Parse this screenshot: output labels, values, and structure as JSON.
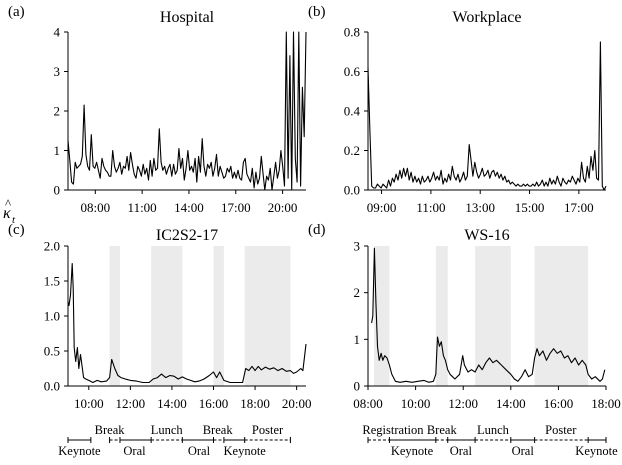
{
  "figure": {
    "ylabel_kappa": "κ",
    "ylabel_hat": "^",
    "ylabel_sub": "t"
  },
  "chart_data": [
    {
      "id": "a",
      "type": "line",
      "panel_label": "(a)",
      "title": "Hospital",
      "x_start": 6.25,
      "x_end": 21.5,
      "ylim": [
        0,
        4
      ],
      "yticks": [
        0,
        1,
        2,
        3,
        4
      ],
      "yticklabels": [
        "0",
        "1",
        "2",
        "3",
        "4"
      ],
      "xticks": [
        8,
        11,
        14,
        17,
        20
      ],
      "xticklabels": [
        "08:00",
        "11:00",
        "14:00",
        "17:00",
        "20:00"
      ],
      "values": [
        1.25,
        0.75,
        0.2,
        0.15,
        0.7,
        0.55,
        0.6,
        0.65,
        0.85,
        2.15,
        0.9,
        0.6,
        0.5,
        1.4,
        0.6,
        0.55,
        0.7,
        0.5,
        0.3,
        0.8,
        0.6,
        0.5,
        0.45,
        0.35,
        0.35,
        1.0,
        0.6,
        0.45,
        0.55,
        0.7,
        0.4,
        0.6,
        0.55,
        0.85,
        0.5,
        0.95,
        0.65,
        0.4,
        0.3,
        0.6,
        0.5,
        0.35,
        0.65,
        0.4,
        0.55,
        0.25,
        0.75,
        0.35,
        0.8,
        0.5,
        0.55,
        1.55,
        0.7,
        0.5,
        0.6,
        0.4,
        0.55,
        0.65,
        0.35,
        0.65,
        0.4,
        0.5,
        1.05,
        0.55,
        0.8,
        0.25,
        0.55,
        1.0,
        0.5,
        0.6,
        0.45,
        0.8,
        0.2,
        0.85,
        0.45,
        1.3,
        0.6,
        0.35,
        0.65,
        0.55,
        0.7,
        0.35,
        0.55,
        0.9,
        0.35,
        0.6,
        0.45,
        0.3,
        0.35,
        0.55,
        0.45,
        0.6,
        0.3,
        0.45,
        0.3,
        0.5,
        0.3,
        0.25,
        0.7,
        0.8,
        0.4,
        0.3,
        0.2,
        0.55,
        0.05,
        0.45,
        0.15,
        0.3,
        0.85,
        0.4,
        0.0,
        0.35,
        0.25,
        0.55,
        0.0,
        0.35,
        0.7,
        0.3,
        0.5,
        1.0,
        0.6,
        0.1,
        4.0,
        0.3,
        3.4,
        0.0,
        4.0,
        0.8,
        0.2,
        4.0,
        0.1,
        2.6,
        1.35,
        4.0
      ]
    },
    {
      "id": "b",
      "type": "line",
      "panel_label": "(b)",
      "title": "Workplace",
      "x_start": 8.45,
      "x_end": 18.1,
      "ylim": [
        0,
        0.8
      ],
      "yticks": [
        0,
        0.2,
        0.4,
        0.6,
        0.8
      ],
      "yticklabels": [
        "0.0",
        "0.2",
        "0.4",
        "0.6",
        "0.8"
      ],
      "xticks": [
        9,
        11,
        13,
        15,
        17
      ],
      "xticklabels": [
        "09:00",
        "11:00",
        "13:00",
        "15:00",
        "17:00"
      ],
      "values": [
        0.62,
        0.3,
        0.02,
        0.01,
        0.01,
        0.03,
        0.02,
        0.01,
        0.03,
        0.02,
        0.01,
        0.05,
        0.02,
        0.06,
        0.04,
        0.08,
        0.05,
        0.1,
        0.06,
        0.11,
        0.07,
        0.11,
        0.05,
        0.09,
        0.04,
        0.07,
        0.04,
        0.06,
        0.03,
        0.07,
        0.04,
        0.05,
        0.07,
        0.04,
        0.06,
        0.09,
        0.05,
        0.07,
        0.05,
        0.1,
        0.03,
        0.06,
        0.04,
        0.08,
        0.05,
        0.12,
        0.07,
        0.05,
        0.08,
        0.04,
        0.06,
        0.09,
        0.05,
        0.07,
        0.23,
        0.15,
        0.07,
        0.14,
        0.09,
        0.06,
        0.08,
        0.11,
        0.07,
        0.08,
        0.1,
        0.06,
        0.09,
        0.1,
        0.07,
        0.09,
        0.06,
        0.08,
        0.05,
        0.07,
        0.04,
        0.05,
        0.03,
        0.04,
        0.03,
        0.02,
        0.03,
        0.02,
        0.02,
        0.03,
        0.02,
        0.03,
        0.02,
        0.02,
        0.03,
        0.02,
        0.04,
        0.02,
        0.03,
        0.05,
        0.02,
        0.04,
        0.02,
        0.06,
        0.03,
        0.05,
        0.03,
        0.07,
        0.04,
        0.02,
        0.06,
        0.04,
        0.03,
        0.05,
        0.04,
        0.07,
        0.05,
        0.03,
        0.06,
        0.04,
        0.14,
        0.06,
        0.04,
        0.12,
        0.06,
        0.17,
        0.1,
        0.2,
        0.06,
        0.05,
        0.75,
        0.02,
        0.0,
        0.02
      ]
    },
    {
      "id": "c",
      "type": "line",
      "panel_label": "(c)",
      "title": "IC2S2-17",
      "x_start": 9.0,
      "x_end": 20.45,
      "ylim": [
        0,
        2.0
      ],
      "yticks": [
        0,
        0.5,
        1.0,
        1.5,
        2.0
      ],
      "yticklabels": [
        "0.0",
        "0.5",
        "1.0",
        "1.5",
        "2.0"
      ],
      "xticks": [
        10,
        12,
        14,
        16,
        18,
        20
      ],
      "xticklabels": [
        "10:00",
        "12:00",
        "14:00",
        "16:00",
        "18:00",
        "20:00"
      ],
      "shaded_intervals": [
        [
          11.0,
          11.5
        ],
        [
          13.0,
          14.5
        ],
        [
          16.0,
          16.5
        ],
        [
          17.5,
          19.7
        ]
      ],
      "values": [
        [
          9.0,
          1.2
        ],
        [
          9.05,
          1.15
        ],
        [
          9.12,
          1.3
        ],
        [
          9.2,
          1.75
        ],
        [
          9.25,
          1.4
        ],
        [
          9.3,
          0.55
        ],
        [
          9.37,
          0.35
        ],
        [
          9.45,
          0.55
        ],
        [
          9.52,
          0.25
        ],
        [
          9.6,
          0.45
        ],
        [
          9.67,
          0.3
        ],
        [
          9.75,
          0.12
        ],
        [
          9.85,
          0.1
        ],
        [
          10.0,
          0.08
        ],
        [
          10.2,
          0.05
        ],
        [
          10.4,
          0.08
        ],
        [
          10.6,
          0.06
        ],
        [
          10.85,
          0.07
        ],
        [
          11.0,
          0.12
        ],
        [
          11.1,
          0.38
        ],
        [
          11.25,
          0.25
        ],
        [
          11.4,
          0.15
        ],
        [
          11.55,
          0.12
        ],
        [
          11.75,
          0.1
        ],
        [
          12.0,
          0.08
        ],
        [
          12.3,
          0.07
        ],
        [
          12.6,
          0.05
        ],
        [
          12.9,
          0.05
        ],
        [
          13.1,
          0.1
        ],
        [
          13.3,
          0.12
        ],
        [
          13.5,
          0.17
        ],
        [
          13.7,
          0.12
        ],
        [
          13.9,
          0.15
        ],
        [
          14.1,
          0.14
        ],
        [
          14.3,
          0.1
        ],
        [
          14.5,
          0.13
        ],
        [
          14.7,
          0.1
        ],
        [
          14.9,
          0.08
        ],
        [
          15.1,
          0.06
        ],
        [
          15.3,
          0.07
        ],
        [
          15.55,
          0.1
        ],
        [
          15.8,
          0.15
        ],
        [
          16.0,
          0.2
        ],
        [
          16.15,
          0.12
        ],
        [
          16.3,
          0.2
        ],
        [
          16.5,
          0.08
        ],
        [
          16.8,
          0.05
        ],
        [
          17.1,
          0.05
        ],
        [
          17.4,
          0.05
        ],
        [
          17.55,
          0.25
        ],
        [
          17.7,
          0.22
        ],
        [
          17.85,
          0.28
        ],
        [
          18.0,
          0.22
        ],
        [
          18.15,
          0.28
        ],
        [
          18.3,
          0.23
        ],
        [
          18.5,
          0.27
        ],
        [
          18.7,
          0.24
        ],
        [
          18.9,
          0.26
        ],
        [
          19.1,
          0.22
        ],
        [
          19.3,
          0.25
        ],
        [
          19.5,
          0.21
        ],
        [
          19.7,
          0.22
        ],
        [
          19.85,
          0.18
        ],
        [
          20.0,
          0.2
        ],
        [
          20.2,
          0.25
        ],
        [
          20.3,
          0.22
        ],
        [
          20.45,
          0.6
        ]
      ]
    },
    {
      "id": "d",
      "type": "line",
      "panel_label": "(d)",
      "title": "WS-16",
      "x_start": 8.0,
      "x_end": 18.0,
      "ylim": [
        0,
        3
      ],
      "yticks": [
        0,
        1,
        2,
        3
      ],
      "yticklabels": [
        "0",
        "1",
        "2",
        "3"
      ],
      "xticks": [
        8,
        10,
        12,
        14,
        16,
        18
      ],
      "xticklabels": [
        "08:00",
        "10:00",
        "12:00",
        "14:00",
        "16:00",
        "18:00"
      ],
      "shaded_intervals": [
        [
          8.25,
          8.9
        ],
        [
          10.85,
          11.35
        ],
        [
          12.5,
          14.0
        ],
        [
          15.0,
          17.25
        ]
      ],
      "values": [
        [
          8.15,
          1.35
        ],
        [
          8.2,
          1.5
        ],
        [
          8.27,
          2.95
        ],
        [
          8.33,
          1.8
        ],
        [
          8.4,
          0.85
        ],
        [
          8.47,
          0.55
        ],
        [
          8.55,
          0.7
        ],
        [
          8.62,
          0.55
        ],
        [
          8.7,
          0.65
        ],
        [
          8.8,
          0.6
        ],
        [
          8.9,
          0.45
        ],
        [
          9.0,
          0.25
        ],
        [
          9.15,
          0.1
        ],
        [
          9.35,
          0.08
        ],
        [
          9.6,
          0.1
        ],
        [
          9.85,
          0.08
        ],
        [
          10.1,
          0.1
        ],
        [
          10.35,
          0.12
        ],
        [
          10.55,
          0.08
        ],
        [
          10.75,
          0.1
        ],
        [
          10.85,
          0.25
        ],
        [
          10.92,
          1.05
        ],
        [
          11.0,
          0.85
        ],
        [
          11.08,
          0.95
        ],
        [
          11.17,
          0.65
        ],
        [
          11.25,
          0.55
        ],
        [
          11.35,
          0.35
        ],
        [
          11.45,
          0.25
        ],
        [
          11.55,
          0.2
        ],
        [
          11.65,
          0.15
        ],
        [
          11.85,
          0.25
        ],
        [
          11.98,
          0.65
        ],
        [
          12.05,
          0.45
        ],
        [
          12.2,
          0.3
        ],
        [
          12.35,
          0.35
        ],
        [
          12.5,
          0.3
        ],
        [
          12.65,
          0.45
        ],
        [
          12.8,
          0.35
        ],
        [
          12.95,
          0.5
        ],
        [
          13.1,
          0.6
        ],
        [
          13.25,
          0.5
        ],
        [
          13.4,
          0.55
        ],
        [
          13.6,
          0.45
        ],
        [
          13.8,
          0.35
        ],
        [
          14.0,
          0.25
        ],
        [
          14.15,
          0.15
        ],
        [
          14.3,
          0.1
        ],
        [
          14.45,
          0.2
        ],
        [
          14.6,
          0.35
        ],
        [
          14.75,
          0.2
        ],
        [
          14.9,
          0.25
        ],
        [
          15.0,
          0.6
        ],
        [
          15.1,
          0.8
        ],
        [
          15.2,
          0.65
        ],
        [
          15.35,
          0.75
        ],
        [
          15.5,
          0.55
        ],
        [
          15.65,
          0.7
        ],
        [
          15.8,
          0.8
        ],
        [
          15.95,
          0.7
        ],
        [
          16.1,
          0.75
        ],
        [
          16.25,
          0.6
        ],
        [
          16.4,
          0.65
        ],
        [
          16.55,
          0.5
        ],
        [
          16.7,
          0.6
        ],
        [
          16.85,
          0.45
        ],
        [
          17.0,
          0.55
        ],
        [
          17.15,
          0.45
        ],
        [
          17.25,
          0.25
        ],
        [
          17.4,
          0.15
        ],
        [
          17.55,
          0.2
        ],
        [
          17.75,
          0.1
        ],
        [
          17.85,
          0.15
        ],
        [
          17.95,
          0.35
        ]
      ]
    }
  ],
  "schedules": [
    {
      "panel": "c",
      "bounds": [
        9.0,
        20.45
      ],
      "ticks": [
        9.0,
        10.1,
        11.0,
        11.5,
        13.0,
        14.5,
        16.0,
        16.5,
        17.5,
        19.7
      ],
      "upper": [
        {
          "start": 11.0,
          "end": 11.5,
          "label": "Break",
          "dashed": true,
          "label_x": 11.0
        },
        {
          "start": 13.0,
          "end": 14.5,
          "label": "Lunch",
          "dashed": true,
          "label_x": 13.75
        },
        {
          "start": 16.0,
          "end": 16.5,
          "label": "Break",
          "dashed": true,
          "label_x": 16.2
        },
        {
          "start": 17.5,
          "end": 19.7,
          "label": "Poster",
          "dashed": true,
          "label_x": 18.6
        }
      ],
      "lower": [
        {
          "start": 9.0,
          "end": 10.1,
          "label": "Keynote",
          "dashed": false,
          "label_x": 9.55
        },
        {
          "start": 11.5,
          "end": 13.0,
          "label": "Oral",
          "dashed": false,
          "label_x": 12.2
        },
        {
          "start": 14.5,
          "end": 16.0,
          "label": "Oral",
          "dashed": false,
          "label_x": 15.3
        },
        {
          "start": 16.5,
          "end": 17.5,
          "label": "Keynote",
          "dashed": false,
          "label_x": 17.5
        }
      ]
    },
    {
      "panel": "d",
      "bounds": [
        8.0,
        18.0
      ],
      "ticks": [
        8.0,
        8.9,
        10.85,
        11.35,
        12.5,
        14.0,
        15.0,
        17.25,
        18.0
      ],
      "upper": [
        {
          "start": 8.0,
          "end": 8.9,
          "label": "Registration",
          "dashed": true,
          "label_x": 9.05
        },
        {
          "start": 10.85,
          "end": 11.35,
          "label": "Break",
          "dashed": true,
          "label_x": 11.1
        },
        {
          "start": 12.5,
          "end": 14.0,
          "label": "Lunch",
          "dashed": true,
          "label_x": 13.25
        },
        {
          "start": 15.0,
          "end": 17.25,
          "label": "Poster",
          "dashed": true,
          "label_x": 16.1
        }
      ],
      "lower": [
        {
          "start": 8.9,
          "end": 10.85,
          "label": "Keynote",
          "dashed": false,
          "label_x": 9.85
        },
        {
          "start": 11.35,
          "end": 12.5,
          "label": "Oral",
          "dashed": false,
          "label_x": 11.9
        },
        {
          "start": 14.0,
          "end": 15.0,
          "label": "Oral",
          "dashed": false,
          "label_x": 14.5
        },
        {
          "start": 17.25,
          "end": 18.0,
          "label": "Keynote",
          "dashed": false,
          "label_x": 17.6
        }
      ]
    }
  ]
}
